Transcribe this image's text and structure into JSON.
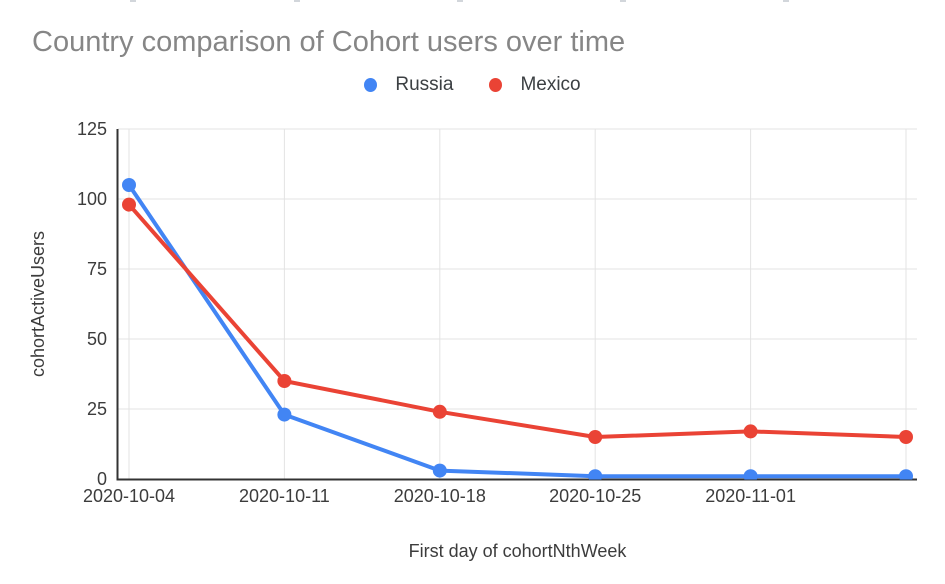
{
  "page": {
    "background": "#ffffff"
  },
  "title": {
    "text": "Country comparison of Cohort users over time",
    "color": "#868686"
  },
  "legend": {
    "items": [
      {
        "label": "Russia",
        "color": "#4285f4"
      },
      {
        "label": "Mexico",
        "color": "#ea4335"
      }
    ]
  },
  "chart_data": {
    "type": "line",
    "title": "Country comparison of Cohort users over time",
    "x_axis_title": "First day of cohortNthWeek",
    "y_axis_title": "cohortActiveUsers",
    "categories": [
      "2020-10-04",
      "2020-10-11",
      "2020-10-18",
      "2020-10-25",
      "2020-11-01",
      ""
    ],
    "x_tick_labels": [
      "2020-10-04",
      "2020-10-11",
      "2020-10-18",
      "2020-10-25",
      "2020-11-01"
    ],
    "series": [
      {
        "name": "Russia",
        "color": "#4285f4",
        "values": [
          105,
          23,
          3,
          1,
          1,
          1
        ]
      },
      {
        "name": "Mexico",
        "color": "#ea4335",
        "values": [
          98,
          35,
          24,
          15,
          17,
          15
        ]
      }
    ],
    "ylim": [
      0,
      125
    ],
    "y_ticks": [
      0,
      25,
      50,
      75,
      100,
      125
    ],
    "grid": true,
    "legend_position": "top",
    "gridline_color": "#e3e3e3",
    "axis_color": "#333333",
    "tick_label_color": "#3c3c3c",
    "axis_title_color": "#3c3c3c"
  }
}
